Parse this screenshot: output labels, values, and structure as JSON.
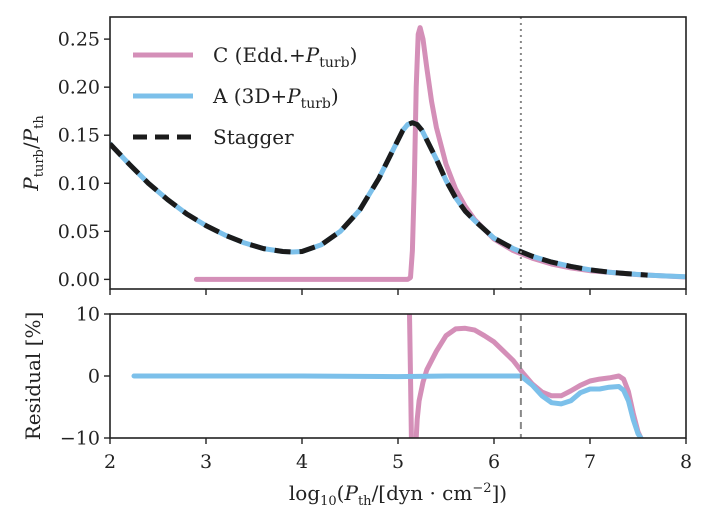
{
  "chart_data": [
    {
      "type": "line",
      "panel": "top",
      "ylabel": "P_turb/P_th",
      "xlim": [
        2,
        8
      ],
      "ylim": [
        -0.01,
        0.273
      ],
      "yticks": [
        0.0,
        0.05,
        0.1,
        0.15,
        0.2,
        0.25
      ],
      "ytick_labels": [
        "0.00",
        "0.05",
        "0.10",
        "0.15",
        "0.20",
        "0.25"
      ],
      "vline": {
        "x": 6.28,
        "style": "dotted",
        "color": "#888888"
      },
      "legend": {
        "position": "top-left",
        "entries": [
          {
            "main": "C (Edd.+",
            "var": "P",
            "sub": "turb",
            "close": ")"
          },
          {
            "main": "A (3D+",
            "var": "P",
            "sub": "turb",
            "close": ")"
          },
          {
            "main": "Stagger",
            "var": "",
            "sub": "",
            "close": ""
          }
        ]
      },
      "series": [
        {
          "name": "C (Edd.+P_turb)",
          "color": "#d48fb8",
          "style": "solid",
          "x": [
            2.9,
            3.5,
            4.0,
            4.5,
            5.0,
            5.1,
            5.13,
            5.15,
            5.17,
            5.19,
            5.21,
            5.23,
            5.26,
            5.3,
            5.35,
            5.4,
            5.5,
            5.6,
            5.7,
            5.8,
            6.0,
            6.2,
            6.4,
            6.6,
            6.8,
            7.0,
            7.5,
            8.0
          ],
          "y": [
            0.0,
            0.0,
            0.0,
            0.0,
            0.0,
            0.0,
            0.002,
            0.03,
            0.1,
            0.2,
            0.255,
            0.262,
            0.25,
            0.22,
            0.185,
            0.158,
            0.12,
            0.094,
            0.076,
            0.062,
            0.042,
            0.03,
            0.022,
            0.016,
            0.012,
            0.009,
            0.005,
            0.0025
          ]
        },
        {
          "name": "A (3D+P_turb)",
          "color": "#7cc0ea",
          "style": "solid",
          "x": [
            2.0,
            2.2,
            2.4,
            2.6,
            2.8,
            3.0,
            3.2,
            3.4,
            3.6,
            3.8,
            3.9,
            4.0,
            4.2,
            4.4,
            4.6,
            4.8,
            4.9,
            5.0,
            5.05,
            5.1,
            5.15,
            5.2,
            5.25,
            5.3,
            5.4,
            5.5,
            5.6,
            5.7,
            5.8,
            6.0,
            6.2,
            6.4,
            6.6,
            6.8,
            7.0,
            7.2,
            7.4,
            7.6,
            7.8,
            8.0
          ],
          "y": [
            0.141,
            0.12,
            0.1,
            0.083,
            0.068,
            0.056,
            0.046,
            0.038,
            0.032,
            0.029,
            0.0285,
            0.029,
            0.036,
            0.05,
            0.072,
            0.105,
            0.125,
            0.145,
            0.155,
            0.161,
            0.163,
            0.161,
            0.155,
            0.145,
            0.125,
            0.103,
            0.085,
            0.071,
            0.061,
            0.043,
            0.032,
            0.024,
            0.018,
            0.0135,
            0.01,
            0.0075,
            0.0058,
            0.0045,
            0.0035,
            0.0028
          ]
        },
        {
          "name": "Stagger",
          "color": "#1b1b1b",
          "style": "dashed",
          "x": [
            2.0,
            2.2,
            2.4,
            2.6,
            2.8,
            3.0,
            3.2,
            3.4,
            3.6,
            3.8,
            3.9,
            4.0,
            4.2,
            4.4,
            4.6,
            4.8,
            4.9,
            5.0,
            5.05,
            5.1,
            5.15,
            5.2,
            5.25,
            5.3,
            5.4,
            5.5,
            5.6,
            5.7,
            5.8,
            6.0,
            6.2,
            6.4,
            6.6,
            6.8,
            7.0,
            7.2,
            7.4,
            7.6
          ],
          "y": [
            0.141,
            0.12,
            0.1,
            0.083,
            0.068,
            0.056,
            0.046,
            0.038,
            0.032,
            0.029,
            0.0285,
            0.029,
            0.036,
            0.05,
            0.072,
            0.105,
            0.125,
            0.145,
            0.155,
            0.161,
            0.163,
            0.161,
            0.155,
            0.145,
            0.125,
            0.103,
            0.085,
            0.071,
            0.061,
            0.043,
            0.032,
            0.024,
            0.018,
            0.0135,
            0.01,
            0.0075,
            0.0058,
            0.0045
          ]
        }
      ]
    },
    {
      "type": "line",
      "panel": "bottom",
      "ylabel": "Residual [%]",
      "xlabel": "log10(P_th/[dyn · cm^-2])",
      "xlim": [
        2,
        8
      ],
      "ylim": [
        -10,
        10
      ],
      "yticks": [
        -10,
        0,
        10
      ],
      "ytick_labels": [
        "−10",
        "0",
        "10"
      ],
      "xticks": [
        2,
        3,
        4,
        5,
        6,
        7,
        8
      ],
      "xtick_labels": [
        "2",
        "3",
        "4",
        "5",
        "6",
        "7",
        "8"
      ],
      "vline": {
        "x": 6.28,
        "style": "dashed",
        "color": "#888888"
      },
      "series": [
        {
          "name": "C (Edd.+P_turb)",
          "color": "#d48fb8",
          "style": "solid",
          "segments": [
            {
              "x": [
                5.12,
                5.13,
                5.14
              ],
              "y": [
                10,
                0,
                -10
              ]
            },
            {
              "x": [
                5.19,
                5.2,
                5.22,
                5.26,
                5.3,
                5.4,
                5.5,
                5.6,
                5.7,
                5.8,
                5.9,
                6.0,
                6.1,
                6.2,
                6.3,
                6.4,
                6.5,
                6.6,
                6.7,
                6.8,
                6.9,
                7.0,
                7.1,
                7.2,
                7.3,
                7.35,
                7.4,
                7.45,
                7.5,
                7.53
              ],
              "y": [
                -10,
                -7,
                -4,
                -1,
                1,
                4,
                6.5,
                7.6,
                7.7,
                7.4,
                6.5,
                5.5,
                4,
                2.5,
                0.5,
                -1.3,
                -2.6,
                -3.2,
                -3.2,
                -2.4,
                -1.5,
                -0.8,
                -0.5,
                -0.3,
                0,
                -0.5,
                -2.5,
                -6,
                -9,
                -10
              ]
            }
          ]
        },
        {
          "name": "A (3D+P_turb)",
          "color": "#7cc0ea",
          "style": "solid",
          "segments": [
            {
              "x": [
                2.25,
                3.0,
                4.0,
                5.0,
                5.5,
                6.0,
                6.28,
                6.4,
                6.5,
                6.6,
                6.7,
                6.8,
                6.9,
                7.0,
                7.1,
                7.2,
                7.3,
                7.35,
                7.4,
                7.45,
                7.5,
                7.53
              ],
              "y": [
                0,
                0,
                0,
                -0.1,
                0,
                0,
                0,
                -1.5,
                -3.2,
                -4.3,
                -4.5,
                -4.0,
                -2.7,
                -2.1,
                -2.1,
                -1.8,
                -1.7,
                -2.3,
                -4.0,
                -7.0,
                -9.3,
                -10
              ]
            }
          ]
        }
      ]
    }
  ]
}
